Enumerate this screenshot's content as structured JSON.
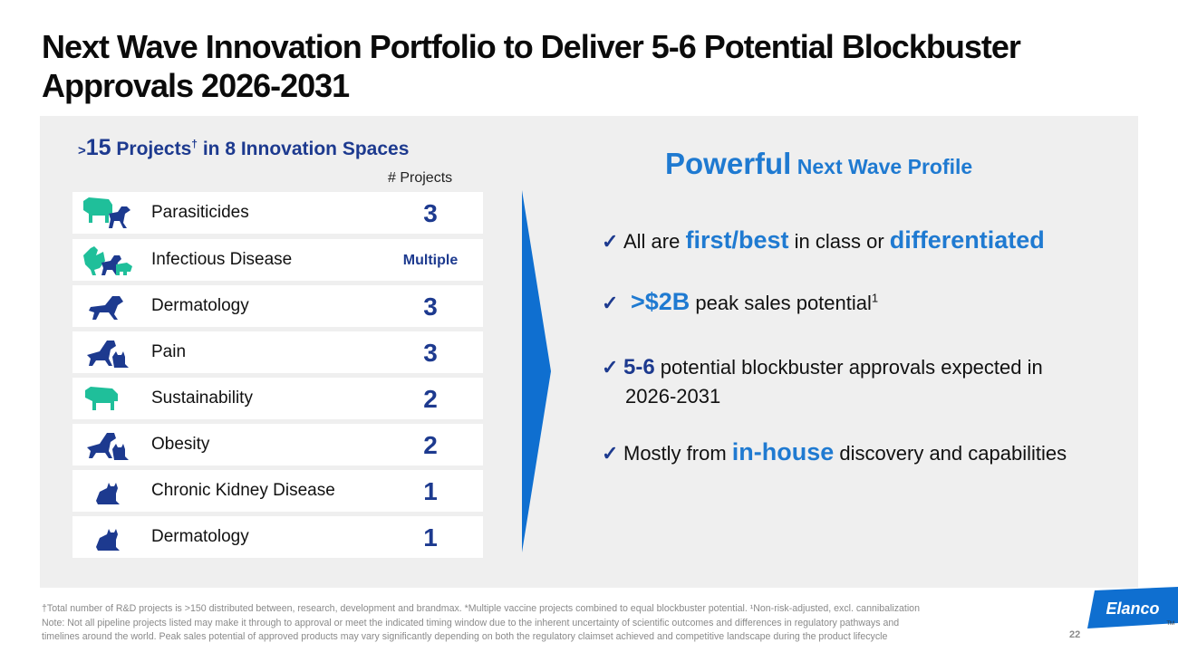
{
  "slide": {
    "title": "Next Wave Innovation Portfolio to Deliver 5-6 Potential Blockbuster Approvals 2026-2031",
    "page_number": "22"
  },
  "left": {
    "heading_gt": ">",
    "heading_num": "15",
    "heading_text": " Projects",
    "heading_dagger": "†",
    "heading_rest": " in 8 Innovation Spaces",
    "column_header": "# Projects",
    "rows": [
      {
        "label": "Parasiticides",
        "count": "3",
        "icon": "cow-dog-icon"
      },
      {
        "label": "Infectious Disease",
        "count": "Multiple",
        "icon": "chicken-dog-pig-icon"
      },
      {
        "label": "Dermatology",
        "count": "3",
        "icon": "dog-icon"
      },
      {
        "label": "Pain",
        "count": "3",
        "icon": "dog-cat-icon"
      },
      {
        "label": "Sustainability",
        "count": "2",
        "icon": "cow-icon"
      },
      {
        "label": "Obesity",
        "count": "2",
        "icon": "dog-cat-icon"
      },
      {
        "label": "Chronic Kidney Disease",
        "count": "1",
        "icon": "cat-icon"
      },
      {
        "label": "Dermatology",
        "count": "1",
        "icon": "cat-icon"
      }
    ]
  },
  "right": {
    "heading_big": "Powerful",
    "heading_small": " Next Wave Profile",
    "check": "✓",
    "b1": {
      "pre": "All are ",
      "hl1": "first/best",
      "mid": " in class or ",
      "hl2": "differentiated"
    },
    "b2": {
      "hl": ">$2B",
      "post": " peak sales potential",
      "sup": "1"
    },
    "b3": {
      "hl": "5-6",
      "post": " potential blockbuster approvals expected in",
      "line2": "2026-2031"
    },
    "b4": {
      "pre": "Mostly from ",
      "hl": "in-house",
      "post": " discovery and capabilities"
    }
  },
  "footnotes": [
    "†Total number of R&D projects is >150 distributed between, research, development and brandmax. *Multiple vaccine projects combined to equal blockbuster potential. ¹Non-risk-adjusted, excl. cannibalization",
    "Note: Not all pipeline projects listed may make it through to approval or meet the indicated timing window due to the inherent uncertainty of scientific outcomes and differences in regulatory pathways and",
    "timelines around the world. Peak sales potential of approved products may vary significantly depending on both the regulatory claimset achieved and competitive landscape during the product lifecycle"
  ],
  "logo": {
    "text": "Elanco",
    "tm": "TM"
  },
  "colors": {
    "navy": "#1d3a8f",
    "blue": "#1f7ad1",
    "teal": "#1fbf9a",
    "arrow": "#0f6fd0"
  }
}
